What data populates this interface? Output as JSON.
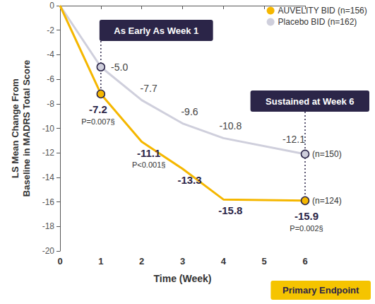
{
  "chart_data": {
    "type": "line",
    "xlabel": "Time (Week)",
    "ylabel": "LS Mean Change From\nBaseline in MADRS Total Score",
    "x": [
      0,
      1,
      2,
      3,
      4,
      6
    ],
    "xlim": [
      0,
      6
    ],
    "xticks": [
      0,
      1,
      2,
      3,
      4,
      5,
      6
    ],
    "ylim": [
      -20,
      0
    ],
    "yticks": [
      0,
      -2,
      -4,
      -6,
      -8,
      -10,
      -12,
      -14,
      -16,
      -18,
      -20
    ],
    "grid": false,
    "legend": "upper right",
    "data_labels": true,
    "marker": "circle",
    "series": [
      {
        "name": "AUVELITY BID (n=156)",
        "color": "#F5B700",
        "values": [
          0,
          -7.2,
          -11.1,
          -13.3,
          -15.8,
          -15.9
        ],
        "value_labels": [
          null,
          "-7.2",
          "-11.1",
          "-13.3",
          "-15.8",
          "-15.9"
        ],
        "p_labels": [
          null,
          "P=0.007§",
          "P<0.001§",
          null,
          null,
          "P=0.002§"
        ],
        "end_label": "(n=124)"
      },
      {
        "name": "Placebo BID (n=162)",
        "color": "#CFCFDC",
        "values": [
          0,
          -5.0,
          -7.7,
          -9.6,
          -10.8,
          -12.1
        ],
        "value_labels": [
          null,
          "-5.0",
          "-7.7",
          "-9.6",
          "-10.8",
          "-12.1"
        ],
        "end_label": "(n=150)"
      }
    ],
    "annotations": [
      {
        "text": "As Early As Week 1",
        "x": 1
      },
      {
        "text": "Sustained at Week 6",
        "x": 6
      }
    ],
    "footnote": "Primary Endpoint"
  }
}
